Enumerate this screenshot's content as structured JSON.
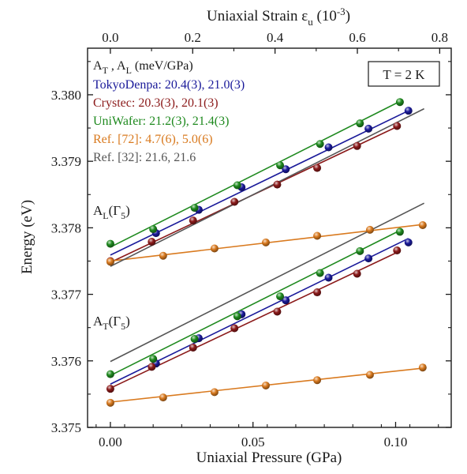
{
  "chart_data": {
    "type": "scatter",
    "xlabel": "Uniaxial Pressure (GPa)",
    "ylabel": "Energy (eV)",
    "x2label": "Uniaxial Strain ε",
    "x2label_sub": "u",
    "x2label_unit": " (10",
    "x2label_exp": "-3",
    "x2label_close": ")",
    "xlim": [
      -0.008,
      0.1195
    ],
    "ylim": [
      3.375,
      3.3807
    ],
    "x2lim": [
      -0.0554,
      0.828
    ],
    "xticks": [
      0.0,
      0.05,
      0.1
    ],
    "xtick_labels": [
      "0.00",
      "0.05",
      "0.10"
    ],
    "yticks": [
      3.375,
      3.376,
      3.377,
      3.378,
      3.379,
      3.38
    ],
    "ytick_labels": [
      "3.375",
      "3.376",
      "3.377",
      "3.378",
      "3.379",
      "3.380"
    ],
    "x2ticks": [
      0.0,
      0.2,
      0.4,
      0.6,
      0.8
    ],
    "x2tick_labels": [
      "0.0",
      "0.2",
      "0.4",
      "0.6",
      "0.8"
    ],
    "grid": false,
    "temperature_label": "T = 2 K",
    "legend_header": {
      "main": "A",
      "sub1": "T",
      "mid": " , A",
      "sub2": "L",
      "unit": " (meV/GPa)"
    },
    "legend": [
      {
        "text": "TokyoDenpa: 20.4(3), 21.0(3)",
        "color": "#1a1a9a"
      },
      {
        "text": "Crystec: 20.3(3), 20.1(3)",
        "color": "#8b1a1a"
      },
      {
        "text": "UniWafer: 21.2(3), 21.4(3)",
        "color": "#1f8a1f"
      },
      {
        "text": "Ref. [72]: 4.7(6), 5.0(6)",
        "color": "#d97a1f"
      },
      {
        "text": "Ref. [32]: 21.6, 21.6",
        "color": "#555555"
      }
    ],
    "annotations": [
      {
        "main": "A",
        "sub": "L",
        "open": "(Γ",
        "sub2": "5",
        "close": ")"
      },
      {
        "main": "A",
        "sub": "T",
        "open": "(Γ",
        "sub2": "5",
        "close": ")"
      }
    ],
    "series": [
      {
        "name": "TokyoDenpa",
        "branch": "A_L",
        "color": "#1a1a9a",
        "x": [
          0.016,
          0.031,
          0.046,
          0.0615,
          0.0765,
          0.0905,
          0.1045
        ],
        "y": [
          3.37792,
          3.37827,
          3.37861,
          3.37888,
          3.37921,
          3.37949,
          3.37976
        ]
      },
      {
        "name": "Crystec",
        "branch": "A_L",
        "color": "#8b1a1a",
        "x": [
          0.0,
          0.0145,
          0.029,
          0.0435,
          0.0585,
          0.0725,
          0.0865,
          0.1005
        ],
        "y": [
          3.3775,
          3.37779,
          3.37811,
          3.37839,
          3.37865,
          3.3789,
          3.37923,
          3.37953
        ]
      },
      {
        "name": "UniWafer",
        "branch": "A_L",
        "color": "#1f8a1f",
        "x": [
          0.0,
          0.015,
          0.0295,
          0.0445,
          0.0595,
          0.0735,
          0.0875,
          0.1015
        ],
        "y": [
          3.37776,
          3.37798,
          3.3783,
          3.37864,
          3.37894,
          3.37926,
          3.37957,
          3.37989
        ]
      },
      {
        "name": "Ref. [72]",
        "branch": "A_L",
        "color": "#d97a1f",
        "x": [
          0.0,
          0.0185,
          0.0365,
          0.0545,
          0.0725,
          0.091,
          0.1095
        ],
        "y": [
          3.37749,
          3.37758,
          3.37769,
          3.37778,
          3.37788,
          3.37797,
          3.37804
        ]
      },
      {
        "name": "TokyoDenpa",
        "branch": "A_T",
        "color": "#1a1a9a",
        "x": [
          0.016,
          0.031,
          0.046,
          0.0615,
          0.0765,
          0.0905,
          0.1045
        ],
        "y": [
          3.37596,
          3.37634,
          3.3767,
          3.37691,
          3.37725,
          3.37754,
          3.37778
        ]
      },
      {
        "name": "Crystec",
        "branch": "A_T",
        "color": "#8b1a1a",
        "x": [
          0.0,
          0.0145,
          0.029,
          0.0435,
          0.0585,
          0.0725,
          0.0865,
          0.1005
        ],
        "y": [
          3.37558,
          3.37591,
          3.3762,
          3.37649,
          3.37674,
          3.37703,
          3.37731,
          3.37766
        ]
      },
      {
        "name": "UniWafer",
        "branch": "A_T",
        "color": "#1f8a1f",
        "x": [
          0.0,
          0.015,
          0.0295,
          0.0445,
          0.0595,
          0.0735,
          0.0875,
          0.1015
        ],
        "y": [
          3.3758,
          3.37603,
          3.37633,
          3.37667,
          3.37697,
          3.37732,
          3.37765,
          3.37794
        ]
      },
      {
        "name": "Ref. [72]",
        "branch": "A_T",
        "color": "#d97a1f",
        "x": [
          0.0,
          0.0185,
          0.0365,
          0.0545,
          0.0725,
          0.091,
          0.1095
        ],
        "y": [
          3.37537,
          3.37545,
          3.37553,
          3.37563,
          3.37571,
          3.37579,
          3.3759
        ]
      }
    ],
    "fit_lines": [
      {
        "name": "TokyoDenpa",
        "branch": "A_L",
        "color": "#1a1a9a",
        "x": [
          0.0,
          0.1045
        ],
        "y": [
          3.37759,
          3.37976
        ]
      },
      {
        "name": "Crystec",
        "branch": "A_L",
        "color": "#8b1a1a",
        "x": [
          0.0,
          0.1005
        ],
        "y": [
          3.37748,
          3.37952
        ]
      },
      {
        "name": "UniWafer",
        "branch": "A_L",
        "color": "#1f8a1f",
        "x": [
          0.0,
          0.1015
        ],
        "y": [
          3.37771,
          3.3799
        ]
      },
      {
        "name": "Ref. [72]",
        "branch": "A_L",
        "color": "#d97a1f",
        "x": [
          0.0,
          0.1095
        ],
        "y": [
          3.3775,
          3.37805
        ]
      },
      {
        "name": "Ref. [32]",
        "branch": "A_L",
        "color": "#555555",
        "x": [
          0.0,
          0.11
        ],
        "y": [
          3.37742,
          3.37979
        ]
      },
      {
        "name": "TokyoDenpa",
        "branch": "A_T",
        "color": "#1a1a9a",
        "x": [
          0.0,
          0.1045
        ],
        "y": [
          3.37565,
          3.37784
        ]
      },
      {
        "name": "Crystec",
        "branch": "A_T",
        "color": "#8b1a1a",
        "x": [
          0.0,
          0.1005
        ],
        "y": [
          3.37559,
          3.37763
        ]
      },
      {
        "name": "UniWafer",
        "branch": "A_T",
        "color": "#1f8a1f",
        "x": [
          0.0,
          0.1015
        ],
        "y": [
          3.37578,
          3.37796
        ]
      },
      {
        "name": "Ref. [72]",
        "branch": "A_T",
        "color": "#d97a1f",
        "x": [
          0.0,
          0.1095
        ],
        "y": [
          3.37538,
          3.37589
        ]
      },
      {
        "name": "Ref. [32]",
        "branch": "A_T",
        "color": "#555555",
        "x": [
          0.0,
          0.11
        ],
        "y": [
          3.37599,
          3.37837
        ]
      }
    ]
  }
}
